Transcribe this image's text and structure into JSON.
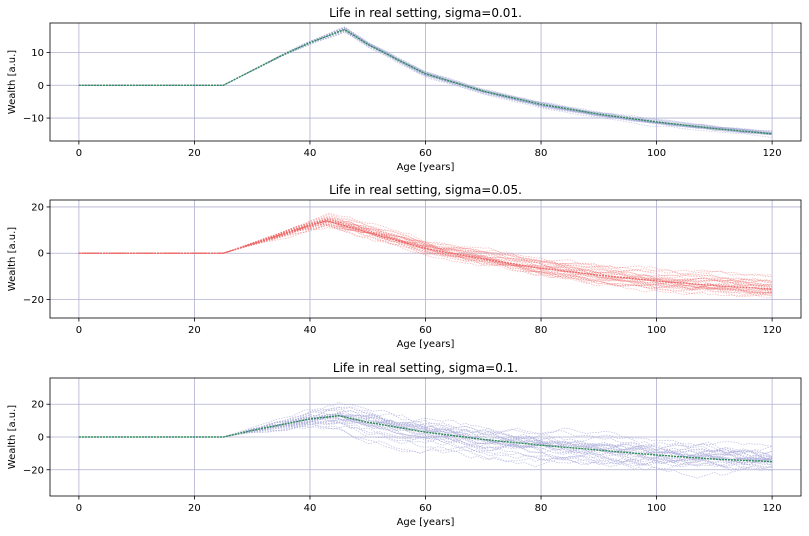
{
  "chart_data": [
    {
      "type": "line",
      "title": "Life in real setting, sigma=0.01.",
      "xlabel": "Age [years]",
      "ylabel": "Wealth [a.u.]",
      "xlim": [
        -5,
        125
      ],
      "ylim": [
        -17,
        19
      ],
      "xticks": [
        0,
        20,
        40,
        60,
        80,
        100,
        120
      ],
      "yticks": [
        -10,
        0,
        10
      ],
      "grid": true,
      "line_color": "#2e8b57",
      "band_color": "#a9abd8",
      "band_opacity": 0.6,
      "noise_scale": 0.4,
      "trajectories": 25,
      "mean_path": {
        "x": [
          0,
          25,
          30,
          35,
          40,
          46,
          50,
          60,
          70,
          80,
          90,
          100,
          110,
          120
        ],
        "y": [
          0,
          0,
          4.5,
          9,
          13,
          17,
          12.5,
          3.5,
          -1.8,
          -5.8,
          -8.8,
          -11.2,
          -13.2,
          -14.8
        ]
      }
    },
    {
      "type": "line",
      "title": "Life in real setting, sigma=0.05.",
      "xlabel": "Age [years]",
      "ylabel": "Wealth [a.u.]",
      "xlim": [
        -5,
        125
      ],
      "ylim": [
        -28,
        23
      ],
      "xticks": [
        0,
        20,
        40,
        60,
        80,
        100,
        120
      ],
      "yticks": [
        -20,
        0,
        20
      ],
      "grid": true,
      "line_color": "#ee6a6a",
      "band_color": "#ee6a6a",
      "band_opacity": 0.45,
      "noise_scale": 1.8,
      "trajectories": 30,
      "mean_path": {
        "x": [
          0,
          25,
          30,
          35,
          40,
          43,
          50,
          60,
          70,
          80,
          90,
          100,
          110,
          120
        ],
        "y": [
          0,
          0,
          4,
          8,
          12,
          14,
          9,
          2,
          -2.5,
          -6.5,
          -9.5,
          -12,
          -14,
          -15.5
        ]
      }
    },
    {
      "type": "line",
      "title": "Life in real setting, sigma=0.1.",
      "xlabel": "Age [years]",
      "ylabel": "Wealth [a.u.]",
      "xlim": [
        -5,
        125
      ],
      "ylim": [
        -36,
        36
      ],
      "xticks": [
        0,
        20,
        40,
        60,
        80,
        100,
        120
      ],
      "yticks": [
        -20,
        0,
        20
      ],
      "grid": true,
      "line_color": "#2e8b57",
      "band_color": "#a9abd8",
      "band_opacity": 0.7,
      "noise_scale": 4,
      "trajectories": 30,
      "mean_path": {
        "x": [
          0,
          25,
          30,
          35,
          40,
          45,
          50,
          60,
          70,
          80,
          90,
          100,
          110,
          120
        ],
        "y": [
          0,
          0,
          4,
          7.5,
          11,
          13,
          9,
          3,
          -1.5,
          -5,
          -8,
          -11,
          -13.5,
          -15
        ]
      }
    }
  ]
}
